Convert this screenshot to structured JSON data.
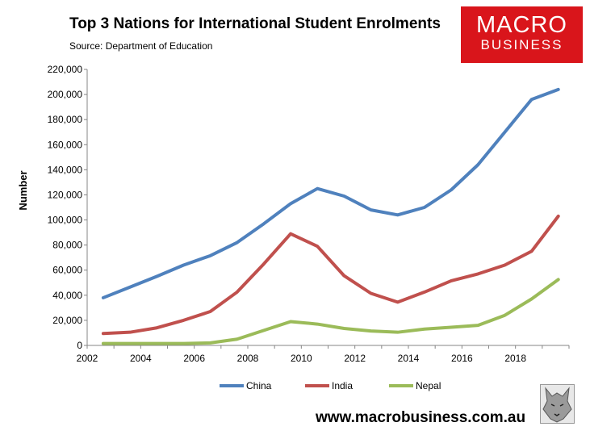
{
  "header": {
    "title": "Top 3 Nations for International Student Enrolments",
    "subtitle": "Source: Department of Education"
  },
  "logo": {
    "line1": "MACRO",
    "line2": "BUSINESS",
    "color": "#d9151b"
  },
  "footer": {
    "url": "www.macrobusiness.com.au"
  },
  "chart_data": {
    "type": "line",
    "ylabel": "Number",
    "xlabel": "",
    "ylim": [
      0,
      220000
    ],
    "yticks": [
      "0",
      "20,000",
      "40,000",
      "60,000",
      "80,000",
      "100,000",
      "120,000",
      "140,000",
      "160,000",
      "180,000",
      "200,000",
      "220,000"
    ],
    "xlim": [
      2002,
      2020
    ],
    "xticks": [
      "2002",
      "2004",
      "2006",
      "2008",
      "2010",
      "2012",
      "2014",
      "2016",
      "2018"
    ],
    "grid": false,
    "legend": "bottom",
    "x": [
      2002,
      2003,
      2004,
      2005,
      2006,
      2007,
      2008,
      2009,
      2010,
      2011,
      2012,
      2013,
      2014,
      2015,
      2016,
      2017,
      2018,
      2019
    ],
    "series": [
      {
        "name": "China",
        "color": "#4f81bd",
        "values": [
          38000,
          46500,
          55000,
          64000,
          71500,
          82000,
          97000,
          113000,
          125000,
          119000,
          108000,
          104000,
          110000,
          124000,
          144000,
          170000,
          196000,
          204000
        ]
      },
      {
        "name": "India",
        "color": "#c0504d",
        "values": [
          9500,
          10500,
          14000,
          20000,
          27000,
          42500,
          65000,
          89000,
          79000,
          55500,
          41500,
          34500,
          42500,
          51500,
          57000,
          64000,
          75000,
          103000
        ]
      },
      {
        "name": "Nepal",
        "color": "#9bbb59",
        "values": [
          1500,
          1500,
          1500,
          1500,
          2000,
          5000,
          12000,
          19000,
          17000,
          13500,
          11500,
          10500,
          13000,
          14500,
          16000,
          24000,
          37000,
          52500
        ]
      }
    ]
  }
}
